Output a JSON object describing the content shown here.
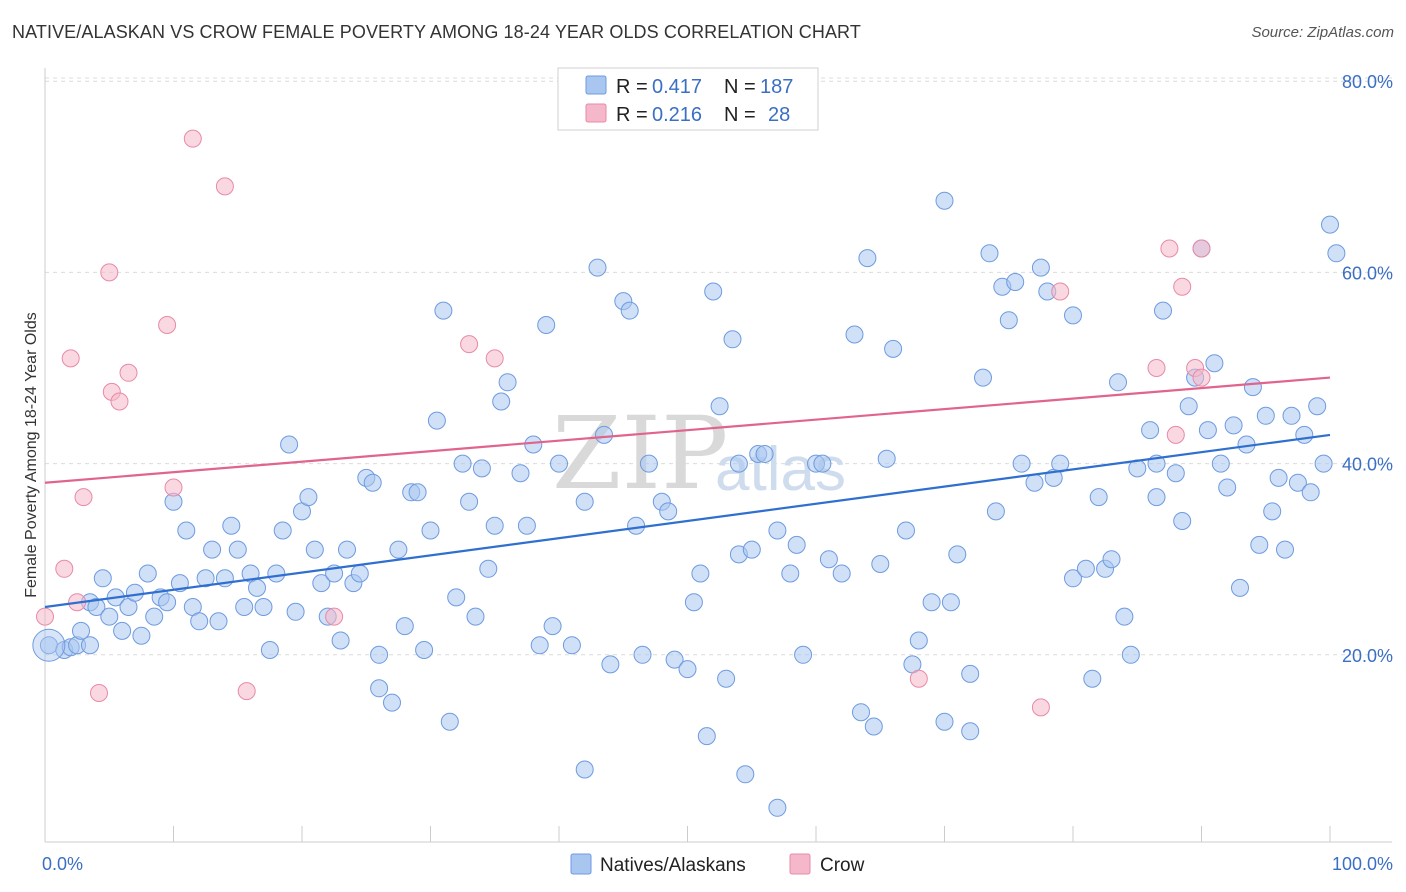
{
  "header": {
    "title": "NATIVE/ALASKAN VS CROW FEMALE POVERTY AMONG 18-24 YEAR OLDS CORRELATION CHART",
    "source": "Source: ZipAtlas.com"
  },
  "watermark": {
    "zip": "ZIP",
    "atlas": "atlas"
  },
  "legend": {
    "rows": [
      {
        "r_label": "R = ",
        "r_value": "0.417",
        "n_label": "N = ",
        "n_value": "187",
        "color": "#a9c6f0"
      },
      {
        "r_label": "R = ",
        "r_value": "0.216",
        "n_label": "N = ",
        "n_value": "28",
        "color": "#f5b8cb"
      }
    ]
  },
  "chart_data": {
    "type": "scatter",
    "title": "NATIVE/ALASKAN VS CROW FEMALE POVERTY AMONG 18-24 YEAR OLDS CORRELATION CHART",
    "xlabel": "",
    "ylabel": "Female Poverty Among 18-24 Year Olds",
    "xlim": [
      0,
      100
    ],
    "ylim": [
      0,
      82
    ],
    "x_tick_labels": [
      "0.0%",
      "100.0%"
    ],
    "y_ticks": [
      20,
      40,
      60,
      80
    ],
    "y_tick_labels": [
      "20.0%",
      "40.0%",
      "60.0%",
      "80.0%"
    ],
    "grid": true,
    "legend_position": "top-center",
    "series": [
      {
        "name": "Natives/Alaskans",
        "color": "#a9c6f0",
        "stroke": "#6e9be0",
        "line_color": "#2f6fcf",
        "trend": {
          "x": [
            0,
            100
          ],
          "y": [
            25.0,
            43.0
          ]
        },
        "points": [
          [
            0.3,
            21
          ],
          [
            1.5,
            20.5
          ],
          [
            2,
            20.8
          ],
          [
            2.5,
            21
          ],
          [
            3.5,
            21
          ],
          [
            2.8,
            22.5
          ],
          [
            3.5,
            25.5
          ],
          [
            4,
            25
          ],
          [
            4.5,
            28
          ],
          [
            5,
            24
          ],
          [
            5.5,
            26
          ],
          [
            6,
            22.5
          ],
          [
            6.5,
            25
          ],
          [
            7,
            26.5
          ],
          [
            7.5,
            22
          ],
          [
            8,
            28.5
          ],
          [
            8.5,
            24
          ],
          [
            9,
            26
          ],
          [
            9.5,
            25.5
          ],
          [
            10,
            36
          ],
          [
            10.5,
            27.5
          ],
          [
            11,
            33
          ],
          [
            11.5,
            25
          ],
          [
            12,
            23.5
          ],
          [
            12.5,
            28
          ],
          [
            13,
            31
          ],
          [
            13.5,
            23.5
          ],
          [
            14,
            28
          ],
          [
            14.5,
            33.5
          ],
          [
            15,
            31
          ],
          [
            15.5,
            25
          ],
          [
            16,
            28.5
          ],
          [
            16.5,
            27
          ],
          [
            17,
            25
          ],
          [
            17.5,
            20.5
          ],
          [
            18,
            28.5
          ],
          [
            18.5,
            33
          ],
          [
            19,
            42
          ],
          [
            19.5,
            24.5
          ],
          [
            20,
            35
          ],
          [
            20.5,
            36.5
          ],
          [
            21,
            31
          ],
          [
            21.5,
            27.5
          ],
          [
            22,
            24
          ],
          [
            22.5,
            28.5
          ],
          [
            23,
            21.5
          ],
          [
            23.5,
            31
          ],
          [
            24,
            27.5
          ],
          [
            24.5,
            28.5
          ],
          [
            25,
            38.5
          ],
          [
            25.5,
            38
          ],
          [
            26,
            20
          ],
          [
            26,
            16.5
          ],
          [
            27,
            15
          ],
          [
            27.5,
            31
          ],
          [
            28,
            23
          ],
          [
            28.5,
            37
          ],
          [
            29,
            37
          ],
          [
            29.5,
            20.5
          ],
          [
            30,
            33
          ],
          [
            30.5,
            44.5
          ],
          [
            31,
            56
          ],
          [
            31.5,
            13
          ],
          [
            32,
            26
          ],
          [
            32.5,
            40
          ],
          [
            33,
            36
          ],
          [
            33.5,
            24
          ],
          [
            34,
            39.5
          ],
          [
            34.5,
            29
          ],
          [
            35,
            33.5
          ],
          [
            35.5,
            46.5
          ],
          [
            36,
            48.5
          ],
          [
            37,
            39
          ],
          [
            37.5,
            33.5
          ],
          [
            38,
            42
          ],
          [
            38.5,
            21
          ],
          [
            39,
            54.5
          ],
          [
            39.5,
            23
          ],
          [
            40,
            40
          ],
          [
            41,
            21
          ],
          [
            42,
            36
          ],
          [
            42,
            8
          ],
          [
            43,
            60.5
          ],
          [
            43.5,
            43
          ],
          [
            44,
            19
          ],
          [
            45,
            57
          ],
          [
            45.5,
            56
          ],
          [
            46,
            33.5
          ],
          [
            46.5,
            20
          ],
          [
            47,
            40
          ],
          [
            48,
            36
          ],
          [
            48.5,
            35
          ],
          [
            49,
            19.5
          ],
          [
            50,
            18.5
          ],
          [
            50.5,
            25.5
          ],
          [
            51,
            28.5
          ],
          [
            51.5,
            11.5
          ],
          [
            52,
            58
          ],
          [
            52.5,
            46
          ],
          [
            53,
            17.5
          ],
          [
            53.5,
            53
          ],
          [
            54,
            30.5
          ],
          [
            54,
            40
          ],
          [
            54.5,
            7.5
          ],
          [
            55,
            31
          ],
          [
            55.5,
            41
          ],
          [
            56,
            41
          ],
          [
            57,
            4
          ],
          [
            57,
            33
          ],
          [
            58,
            28.5
          ],
          [
            58.5,
            31.5
          ],
          [
            59,
            20
          ],
          [
            60,
            40
          ],
          [
            60.5,
            40
          ],
          [
            61,
            30
          ],
          [
            62,
            28.5
          ],
          [
            63,
            53.5
          ],
          [
            63.5,
            14
          ],
          [
            64,
            61.5
          ],
          [
            64.5,
            12.5
          ],
          [
            65,
            29.5
          ],
          [
            65.5,
            40.5
          ],
          [
            66,
            52
          ],
          [
            67,
            33
          ],
          [
            67.5,
            19
          ],
          [
            68,
            21.5
          ],
          [
            69,
            25.5
          ],
          [
            70,
            13
          ],
          [
            70,
            67.5
          ],
          [
            70.5,
            25.5
          ],
          [
            71,
            30.5
          ],
          [
            72,
            18
          ],
          [
            72,
            12
          ],
          [
            73,
            49
          ],
          [
            73.5,
            62
          ],
          [
            74,
            35
          ],
          [
            74.5,
            58.5
          ],
          [
            75,
            55
          ],
          [
            75.5,
            59
          ],
          [
            76,
            40
          ],
          [
            77,
            38
          ],
          [
            77.5,
            60.5
          ],
          [
            78,
            58
          ],
          [
            78.5,
            38.5
          ],
          [
            79,
            40
          ],
          [
            80,
            28
          ],
          [
            80,
            55.5
          ],
          [
            81,
            29
          ],
          [
            81.5,
            17.5
          ],
          [
            82,
            36.5
          ],
          [
            82.5,
            29
          ],
          [
            83,
            30
          ],
          [
            83.5,
            48.5
          ],
          [
            84,
            24
          ],
          [
            84.5,
            20
          ],
          [
            85,
            39.5
          ],
          [
            86,
            43.5
          ],
          [
            86.5,
            40
          ],
          [
            86.5,
            36.5
          ],
          [
            87,
            56
          ],
          [
            88,
            39
          ],
          [
            88.5,
            34
          ],
          [
            89,
            46
          ],
          [
            89.5,
            49
          ],
          [
            90,
            62.5
          ],
          [
            90.5,
            43.5
          ],
          [
            91,
            50.5
          ],
          [
            91.5,
            40
          ],
          [
            92,
            37.5
          ],
          [
            92.5,
            44
          ],
          [
            93,
            27
          ],
          [
            93.5,
            42
          ],
          [
            94,
            48
          ],
          [
            94.5,
            31.5
          ],
          [
            95,
            45
          ],
          [
            95.5,
            35
          ],
          [
            96,
            38.5
          ],
          [
            96.5,
            31
          ],
          [
            97,
            45
          ],
          [
            97.5,
            38
          ],
          [
            98,
            43
          ],
          [
            98.5,
            37
          ],
          [
            99,
            46
          ],
          [
            99.5,
            40
          ],
          [
            100,
            65
          ],
          [
            100.5,
            62
          ]
        ]
      },
      {
        "name": "Crow",
        "color": "#f5b8cb",
        "stroke": "#e88aa6",
        "line_color": "#e0648c",
        "trend": {
          "x": [
            0,
            100
          ],
          "y": [
            38.0,
            49.0
          ]
        },
        "points": [
          [
            0,
            24
          ],
          [
            1.5,
            29
          ],
          [
            2,
            51
          ],
          [
            2.5,
            25.5
          ],
          [
            3,
            36.5
          ],
          [
            4.2,
            16
          ],
          [
            5,
            60
          ],
          [
            5.2,
            47.5
          ],
          [
            5.8,
            46.5
          ],
          [
            6.5,
            49.5
          ],
          [
            9.5,
            54.5
          ],
          [
            10,
            37.5
          ],
          [
            11.5,
            74
          ],
          [
            14,
            69
          ],
          [
            15.7,
            16.2
          ],
          [
            22.5,
            24
          ],
          [
            33,
            52.5
          ],
          [
            35,
            51
          ],
          [
            68,
            17.5
          ],
          [
            77.5,
            14.5
          ],
          [
            79,
            58
          ],
          [
            86.5,
            50
          ],
          [
            87.5,
            62.5
          ],
          [
            88,
            43
          ],
          [
            89.5,
            50
          ],
          [
            90,
            62.5
          ],
          [
            88.5,
            58.5
          ],
          [
            90,
            49
          ]
        ]
      }
    ]
  },
  "bottom_legend": {
    "items": [
      {
        "label": "Natives/Alaskans",
        "color": "#a9c6f0"
      },
      {
        "label": "Crow",
        "color": "#f5b8cb"
      }
    ]
  }
}
